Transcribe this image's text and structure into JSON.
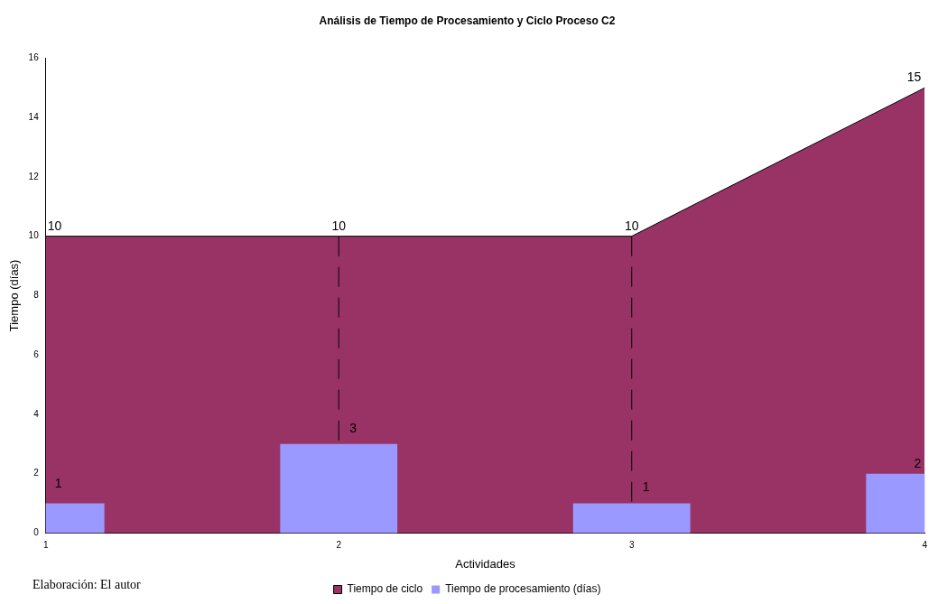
{
  "chart_data": {
    "type": "area",
    "title": "Análisis de Tiempo de Procesamiento y Ciclo Proceso C2",
    "xlabel": "Actividades",
    "ylabel": "Tiempo (días)",
    "categories": [
      "1",
      "2",
      "3",
      "4"
    ],
    "series": [
      {
        "name": "Tiempo de ciclo",
        "color": "#993366",
        "values": [
          10,
          10,
          10,
          15
        ]
      },
      {
        "name": "Tiempo de procesamiento (días)",
        "type": "bar",
        "color": "#9999ff",
        "values": [
          1,
          3,
          1,
          2
        ]
      }
    ],
    "ylim": [
      0,
      16
    ],
    "yticks": [
      0,
      2,
      4,
      6,
      8,
      10,
      12,
      14,
      16
    ],
    "grid": false,
    "legend": "bottom",
    "data_labels": true,
    "ref_lines": [
      {
        "axis": "x",
        "value": "2",
        "line_style": "dashed",
        "color": "#000000"
      },
      {
        "axis": "x",
        "value": "3",
        "line_style": "dashed",
        "color": "#000000"
      }
    ],
    "annotations": [
      "Elaboración: El autor"
    ]
  }
}
